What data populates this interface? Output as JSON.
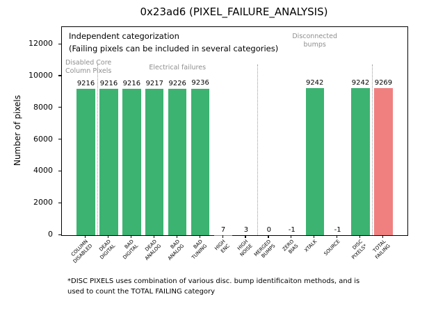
{
  "colors": {
    "ok": "#3cb371",
    "fail": "#f08080",
    "muted": "#8e8e8e",
    "separator": "#999999",
    "axis": "#000000"
  },
  "chart_data": {
    "type": "bar",
    "title": "0x23ad6 (PIXEL_FAILURE_ANALYSIS)",
    "ylabel": "Number of pixels",
    "xlabel": "",
    "ylim": [
      0,
      13100
    ],
    "xlim": [
      -1.05,
      14.05
    ],
    "yticks": [
      0,
      2000,
      4000,
      6000,
      8000,
      10000,
      12000
    ],
    "grid": false,
    "legend": false,
    "categories": [
      "COLUMN\nDISABLED",
      "DEAD\nDIGITAL",
      "BAD\nDIGITAL",
      "DEAD\nANALOG",
      "BAD\nANALOG",
      "BAD\nTUNING",
      "HIGH\nENC",
      "HIGH\nNOISE",
      "MERGED\nBUMPS",
      "ZERO\nBIAS",
      "XTALK",
      "SOURCE",
      "DISC\nPIXELS*",
      "TOTAL\nFAILING"
    ],
    "values": [
      9216,
      9216,
      9216,
      9217,
      9226,
      9236,
      7,
      3,
      0,
      -1,
      9242,
      -1,
      9242,
      9269
    ],
    "bar_colors": [
      "ok",
      "ok",
      "ok",
      "ok",
      "ok",
      "ok",
      "ok",
      "ok",
      "ok",
      "ok",
      "ok",
      "ok",
      "ok",
      "fail"
    ],
    "annotations": [
      {
        "text": "Independent categorization"
      },
      {
        "text": "(Failing pixels can be included in several categories)"
      }
    ],
    "groups": [
      {
        "label": "Disabled Core\nColumn Pixels",
        "from": 0,
        "to": 0,
        "align": "left",
        "y": 46
      },
      {
        "label": "Electrical failures",
        "from": 1,
        "to": 7,
        "align": "center",
        "y": 53
      },
      {
        "label": "Disconnected\nbumps",
        "from": 8,
        "to": 12,
        "align": "center",
        "y": 8
      }
    ],
    "separators_after": [
      0,
      7,
      12
    ],
    "footnote": "*DISC PIXELS uses combination of various disc. bump identificaiton methods, and is\nused to count the TOTAL FAILING category"
  }
}
